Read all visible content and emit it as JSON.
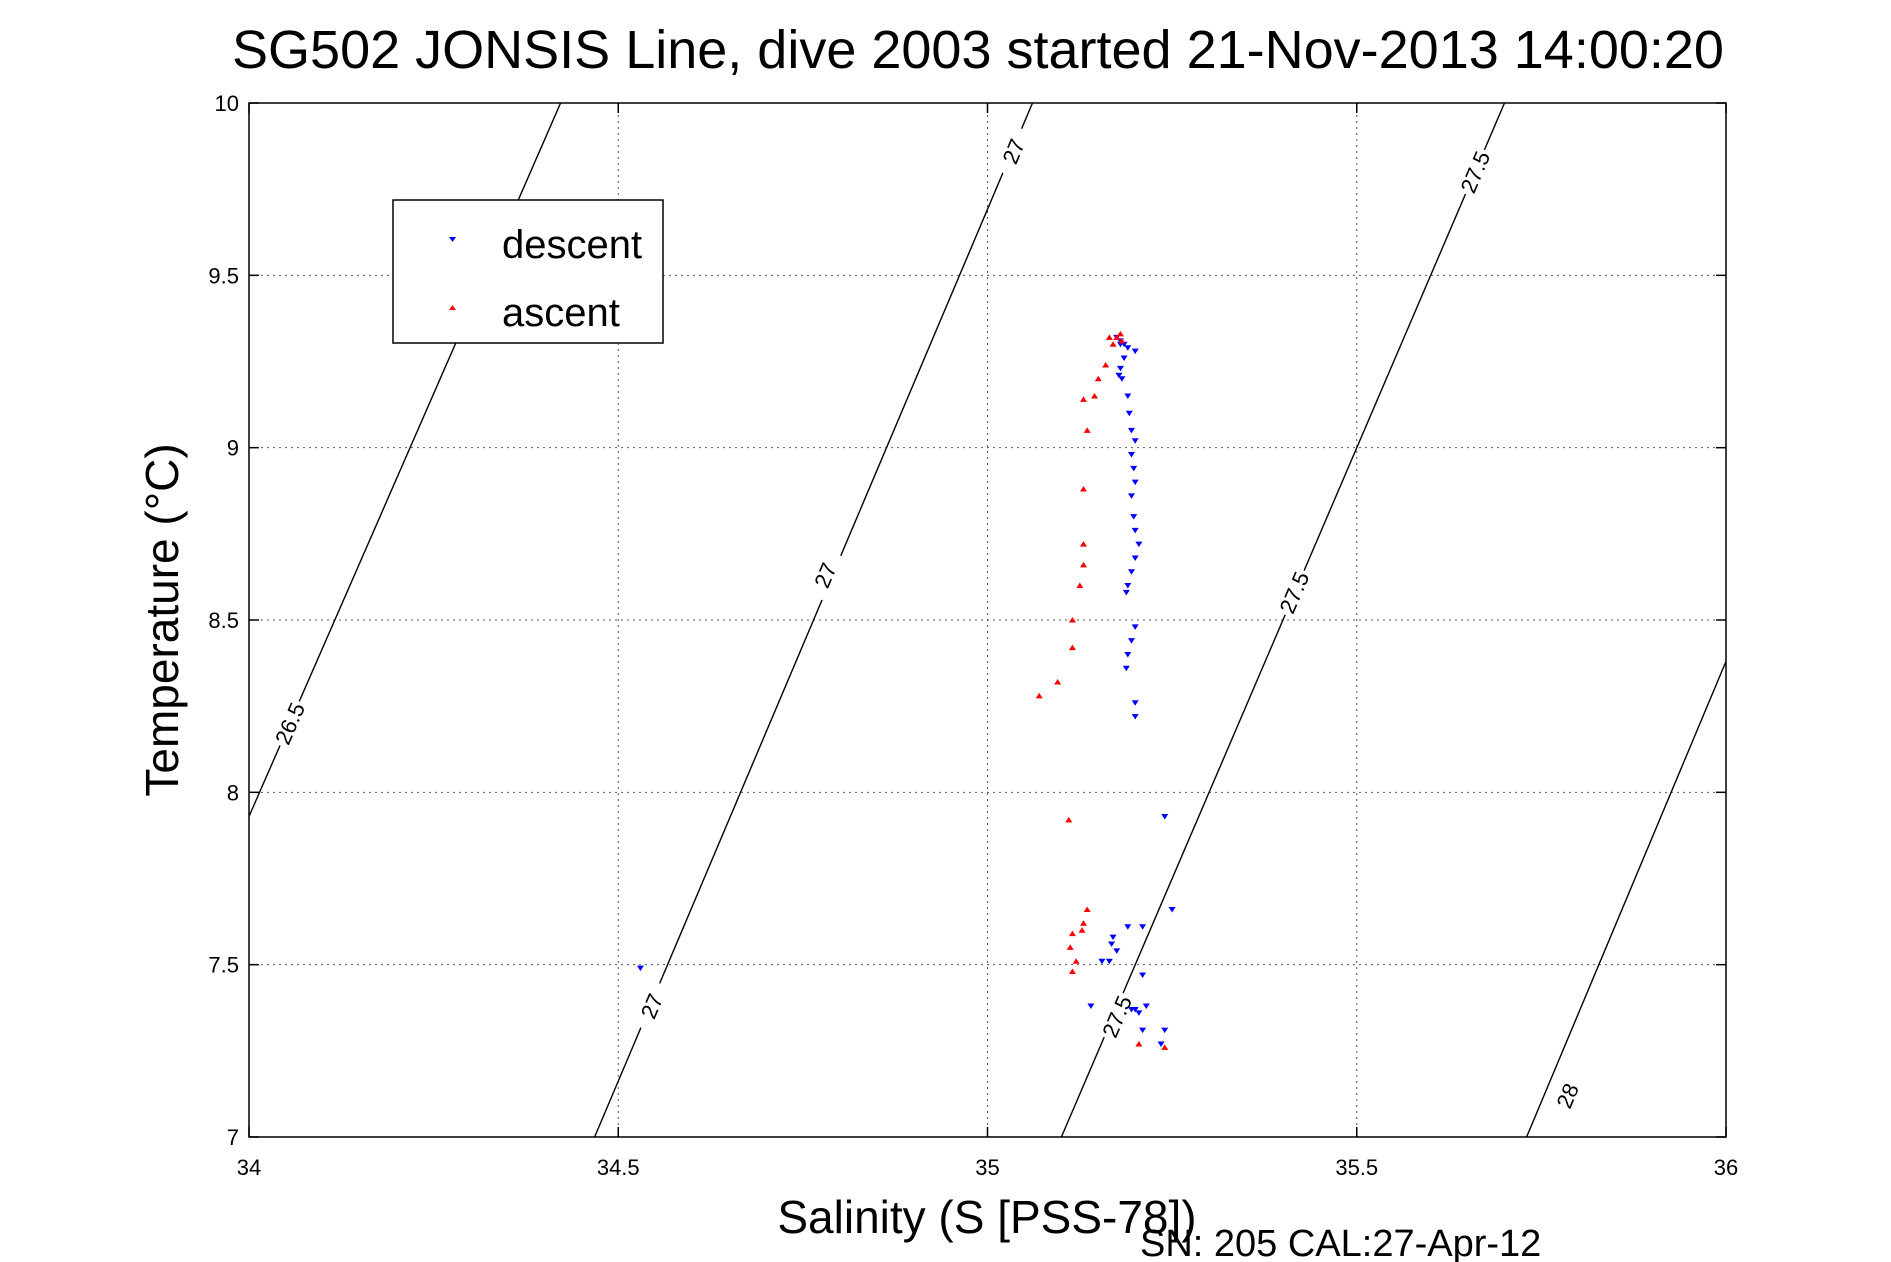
{
  "chart_data": {
    "type": "scatter",
    "title": "SG502 JONSIS Line, dive 2003 started 21-Nov-2013 14:00:20",
    "xlabel": "Salinity (S [PSS-78])",
    "ylabel": "Temperature (°C)",
    "footer": "SN: 205  CAL:27-Apr-12",
    "xlim": [
      34,
      36
    ],
    "ylim": [
      7,
      10
    ],
    "x_ticks": [
      "34",
      "34.5",
      "35",
      "35.5",
      "36"
    ],
    "y_ticks": [
      "7",
      "7.5",
      "8",
      "8.5",
      "9",
      "9.5",
      "10"
    ],
    "grid": true,
    "legend_position": "top-left",
    "colors": {
      "descent": "#0000ff",
      "ascent": "#ff0000",
      "contour": "#000000"
    },
    "isopycnals": [
      {
        "level": "26.5",
        "points": [
          [
            34.0,
            7.93
          ],
          [
            34.422,
            10.0
          ]
        ],
        "labels": [
          {
            "text": "26.5",
            "x": 34.055,
            "y": 8.2
          }
        ]
      },
      {
        "level": "27",
        "points": [
          [
            34.468,
            7.0
          ],
          [
            35.061,
            10.0
          ]
        ],
        "labels": [
          {
            "text": "27",
            "x": 34.545,
            "y": 7.38
          },
          {
            "text": "27",
            "x": 34.78,
            "y": 8.63
          },
          {
            "text": "27",
            "x": 35.035,
            "y": 9.86
          }
        ]
      },
      {
        "level": "27.5",
        "points": [
          [
            35.1,
            7.0
          ],
          [
            35.7,
            10.0
          ]
        ],
        "labels": [
          {
            "text": "27.5",
            "x": 35.175,
            "y": 7.35
          },
          {
            "text": "27.5",
            "x": 35.415,
            "y": 8.58
          },
          {
            "text": "27.5",
            "x": 35.66,
            "y": 9.8
          }
        ]
      },
      {
        "level": "28",
        "points": [
          [
            35.73,
            7.0
          ],
          [
            36.0,
            8.38
          ]
        ],
        "labels": [
          {
            "text": "28",
            "x": 35.785,
            "y": 7.12
          }
        ]
      }
    ],
    "series": [
      {
        "name": "descent",
        "marker": "triangle-down",
        "points": [
          [
            35.175,
            9.32
          ],
          [
            35.18,
            9.31
          ],
          [
            35.185,
            9.3
          ],
          [
            35.19,
            9.29
          ],
          [
            35.2,
            9.28
          ],
          [
            35.18,
            9.3
          ],
          [
            35.185,
            9.26
          ],
          [
            35.18,
            9.23
          ],
          [
            35.178,
            9.21
          ],
          [
            35.182,
            9.2
          ],
          [
            35.19,
            9.15
          ],
          [
            35.192,
            9.1
          ],
          [
            35.195,
            9.05
          ],
          [
            35.2,
            9.02
          ],
          [
            35.195,
            8.98
          ],
          [
            35.198,
            8.94
          ],
          [
            35.2,
            8.9
          ],
          [
            35.195,
            8.86
          ],
          [
            35.198,
            8.8
          ],
          [
            35.2,
            8.76
          ],
          [
            35.205,
            8.72
          ],
          [
            35.2,
            8.68
          ],
          [
            35.195,
            8.64
          ],
          [
            35.19,
            8.6
          ],
          [
            35.188,
            8.58
          ],
          [
            35.2,
            8.48
          ],
          [
            35.195,
            8.44
          ],
          [
            35.19,
            8.4
          ],
          [
            35.188,
            8.36
          ],
          [
            35.2,
            8.26
          ],
          [
            35.2,
            8.22
          ],
          [
            35.24,
            7.93
          ],
          [
            35.25,
            7.66
          ],
          [
            35.19,
            7.61
          ],
          [
            35.21,
            7.61
          ],
          [
            35.17,
            7.58
          ],
          [
            35.168,
            7.56
          ],
          [
            35.175,
            7.54
          ],
          [
            35.155,
            7.51
          ],
          [
            35.165,
            7.51
          ],
          [
            35.21,
            7.47
          ],
          [
            35.14,
            7.38
          ],
          [
            35.2,
            7.37
          ],
          [
            35.215,
            7.38
          ],
          [
            35.195,
            7.37
          ],
          [
            35.205,
            7.36
          ],
          [
            35.21,
            7.31
          ],
          [
            35.24,
            7.31
          ],
          [
            35.235,
            7.27
          ],
          [
            34.53,
            7.49
          ]
        ]
      },
      {
        "name": "ascent",
        "marker": "triangle-up",
        "points": [
          [
            35.165,
            9.32
          ],
          [
            35.175,
            9.32
          ],
          [
            35.18,
            9.33
          ],
          [
            35.182,
            9.31
          ],
          [
            35.17,
            9.3
          ],
          [
            35.16,
            9.24
          ],
          [
            35.15,
            9.2
          ],
          [
            35.145,
            9.15
          ],
          [
            35.13,
            9.14
          ],
          [
            35.135,
            9.05
          ],
          [
            35.13,
            8.88
          ],
          [
            35.13,
            8.72
          ],
          [
            35.13,
            8.66
          ],
          [
            35.125,
            8.6
          ],
          [
            35.115,
            8.5
          ],
          [
            35.115,
            8.42
          ],
          [
            35.095,
            8.32
          ],
          [
            35.07,
            8.28
          ],
          [
            35.11,
            7.92
          ],
          [
            35.135,
            7.66
          ],
          [
            35.13,
            7.62
          ],
          [
            35.128,
            7.6
          ],
          [
            35.115,
            7.59
          ],
          [
            35.112,
            7.55
          ],
          [
            35.12,
            7.51
          ],
          [
            35.115,
            7.48
          ],
          [
            35.205,
            7.27
          ],
          [
            35.24,
            7.26
          ]
        ]
      }
    ]
  }
}
